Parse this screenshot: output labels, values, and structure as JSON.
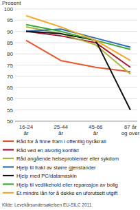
{
  "chart_data": {
    "type": "line",
    "y_label": "Prosent",
    "categories": [
      "16-24 år",
      "25-44 år",
      "45-66 år",
      "67 år og over"
    ],
    "series": [
      {
        "name": "Råd for å finne fram i offentlig byråkrati",
        "color": "#e4572e",
        "values": [
          86,
          77,
          74,
          72
        ]
      },
      {
        "name": "Råd ved en alvorlig konflikt",
        "color": "#a3182f",
        "values": [
          90,
          88,
          85,
          74
        ]
      },
      {
        "name": "Råd angående helseproblemer eller sykdom",
        "color": "#a9b53c",
        "values": [
          92,
          89,
          84,
          71
        ]
      },
      {
        "name": "Hjelp til frakt av større gjenstander",
        "color": "#2f6db5",
        "values": [
          90,
          91,
          87,
          83
        ]
      },
      {
        "name": "Hjelp med PC/datamaskin",
        "color": "#111111",
        "values": [
          90,
          89,
          86,
          55
        ]
      },
      {
        "name": "Hjelp til vedlikehold eller reparasjon av bolig",
        "color": "#3aa935",
        "values": [
          93,
          90,
          86,
          82
        ]
      },
      {
        "name": "Et mindre lån for å dekke en uforutsett utgift",
        "color": "#f6a623",
        "values": [
          97,
          92,
          86,
          77
        ]
      }
    ],
    "ylim": [
      50,
      100
    ],
    "yticks": [
      50,
      55,
      60,
      65,
      70,
      75,
      80,
      85,
      90,
      95,
      100
    ],
    "grid": true,
    "source": "Kilde: Levekårsundersøkelsen EU-SILC 2011."
  }
}
